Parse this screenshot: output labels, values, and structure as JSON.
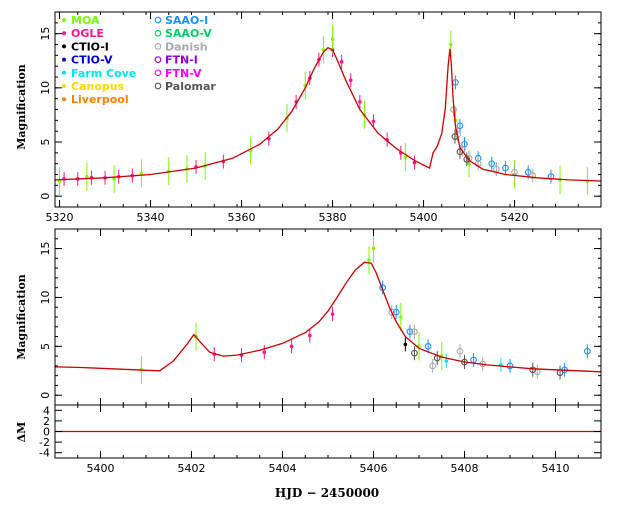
{
  "chart_data": [
    {
      "type": "scatter",
      "panel": "top",
      "ylabel": "Magnification",
      "xlim": [
        5319,
        5439
      ],
      "ylim": [
        -1,
        17
      ],
      "xticks": [
        5320,
        5340,
        5360,
        5380,
        5400,
        5420
      ],
      "yticks": [
        0,
        5,
        10,
        15
      ],
      "legend": {
        "placement": "top-left",
        "entries": [
          {
            "name": "MOA",
            "color": "#7cfc00",
            "marker": "dot"
          },
          {
            "name": "OGLE",
            "color": "#ff1493",
            "marker": "dot"
          },
          {
            "name": "CTIO-I",
            "color": "#000000",
            "marker": "dot"
          },
          {
            "name": "CTIO-V",
            "color": "#0000cd",
            "marker": "dot"
          },
          {
            "name": "Farm Cove",
            "color": "#00e5ee",
            "marker": "dot"
          },
          {
            "name": "Canopus",
            "color": "#ffd700",
            "marker": "dot"
          },
          {
            "name": "Liverpool",
            "color": "#ff7f00",
            "marker": "dot"
          },
          {
            "name": "SAAO-I",
            "color": "#1e90ff",
            "marker": "circle"
          },
          {
            "name": "SAAO-V",
            "color": "#00cd66",
            "marker": "circle"
          },
          {
            "name": "Danish",
            "color": "#a9a9a9",
            "marker": "circle"
          },
          {
            "name": "FTN-I",
            "color": "#9400d3",
            "marker": "circle"
          },
          {
            "name": "FTN-V",
            "color": "#ff00ff",
            "marker": "circle"
          },
          {
            "name": "Palomar",
            "color": "#555555",
            "marker": "circle"
          }
        ]
      },
      "model_curve": {
        "color": "#cc0000",
        "x": [
          5319,
          5330,
          5340,
          5350,
          5358,
          5364,
          5368,
          5371,
          5374,
          5376,
          5378,
          5379,
          5380,
          5381,
          5383,
          5386,
          5390,
          5394,
          5398,
          5401.3,
          5402.1,
          5403,
          5404,
          5404.8,
          5405.4,
          5405.8,
          5406.1,
          5406.5,
          5407,
          5408,
          5410,
          5413,
          5418,
          5425,
          5432,
          5439
        ],
        "y": [
          1.5,
          1.7,
          2.0,
          2.6,
          3.5,
          4.8,
          6.2,
          7.8,
          10.0,
          11.8,
          13.3,
          13.7,
          13.5,
          12.6,
          10.6,
          8.0,
          5.8,
          4.4,
          3.3,
          2.6,
          4.0,
          4.6,
          5.8,
          8.2,
          12.0,
          13.6,
          12.2,
          9.0,
          6.5,
          4.5,
          3.3,
          2.5,
          2.0,
          1.7,
          1.5,
          1.4
        ]
      },
      "data_points": [
        {
          "dataset": "OGLE",
          "x": [
            5321,
            5324,
            5327,
            5330,
            5333,
            5336,
            5350,
            5356,
            5366,
            5372,
            5375,
            5377,
            5380,
            5382,
            5384,
            5386,
            5389,
            5392,
            5395,
            5398
          ],
          "y": [
            1.6,
            1.6,
            1.7,
            1.7,
            1.8,
            1.9,
            2.7,
            3.2,
            5.3,
            8.7,
            10.9,
            12.6,
            13.5,
            12.4,
            10.7,
            8.7,
            6.9,
            5.2,
            4.0,
            3.1
          ]
        },
        {
          "dataset": "MOA",
          "x": [
            5320,
            5326,
            5332,
            5338,
            5344,
            5348,
            5352,
            5362,
            5370,
            5374,
            5378,
            5380,
            5387,
            5396,
            5406,
            5407,
            5410,
            5420,
            5430,
            5436
          ],
          "y": [
            1.4,
            1.8,
            1.6,
            2.1,
            2.3,
            2.5,
            2.8,
            4.2,
            7.2,
            10.2,
            13.5,
            14.5,
            7.5,
            3.6,
            14.0,
            7.0,
            3.0,
            2.0,
            1.5,
            1.4
          ]
        },
        {
          "dataset": "SAAO-I",
          "x": [
            5407,
            5408,
            5409,
            5412,
            5415,
            5418,
            5423,
            5428
          ],
          "y": [
            10.5,
            6.5,
            4.8,
            3.5,
            3.0,
            2.6,
            2.2,
            1.8
          ]
        },
        {
          "dataset": "Danish",
          "x": [
            5406.6,
            5407.5,
            5408.5,
            5410,
            5412,
            5416,
            5420,
            5424
          ],
          "y": [
            8.0,
            5.7,
            4.3,
            3.5,
            3.0,
            2.5,
            2.2,
            1.9
          ]
        },
        {
          "dataset": "Palomar",
          "x": [
            5406.9,
            5408,
            5409.5
          ],
          "y": [
            5.5,
            4.1,
            3.4
          ]
        }
      ]
    },
    {
      "type": "scatter",
      "panel": "middle",
      "ylabel": "Magnification",
      "xlim": [
        5399,
        5411
      ],
      "ylim": [
        -1,
        17
      ],
      "xticks": [
        5400,
        5402,
        5404,
        5406,
        5408,
        5410
      ],
      "yticks": [
        0,
        5,
        10,
        15
      ],
      "model_curve": {
        "color": "#cc0000",
        "x": [
          5399,
          5399.5,
          5400,
          5400.5,
          5401,
          5401.3,
          5401.6,
          5401.9,
          5402.05,
          5402.2,
          5402.4,
          5402.7,
          5403,
          5403.5,
          5404,
          5404.5,
          5404.8,
          5405,
          5405.2,
          5405.4,
          5405.6,
          5405.8,
          5405.95,
          5406.05,
          5406.2,
          5406.35,
          5406.5,
          5406.7,
          5407,
          5407.5,
          5408,
          5408.5,
          5409,
          5409.5,
          5410,
          5410.5,
          5411
        ],
        "y": [
          2.9,
          2.85,
          2.75,
          2.65,
          2.55,
          2.5,
          3.5,
          5.2,
          6.2,
          5.4,
          4.4,
          4.0,
          4.1,
          4.6,
          5.3,
          6.4,
          7.5,
          8.6,
          10.0,
          11.5,
          12.8,
          13.6,
          13.5,
          12.6,
          10.8,
          9.0,
          7.5,
          6.0,
          4.8,
          3.9,
          3.4,
          3.1,
          2.9,
          2.7,
          2.6,
          2.5,
          2.4
        ]
      },
      "data_points": [
        {
          "dataset": "OGLE",
          "x": [
            5402.5,
            5403.1,
            5403.6,
            5404.2,
            5404.6,
            5405.1
          ],
          "y": [
            4.2,
            4.1,
            4.4,
            5.0,
            6.1,
            8.3
          ]
        },
        {
          "dataset": "MOA",
          "x": [
            5400.9,
            5402.1,
            5405.9,
            5406.0,
            5406.6,
            5407.0,
            5407.5
          ],
          "y": [
            2.6,
            6.0,
            13.8,
            15.0,
            8.0,
            5.0,
            4.0
          ]
        },
        {
          "dataset": "SAAO-I",
          "x": [
            5406.2,
            5406.5,
            5406.8,
            5407.2,
            5408.2,
            5409.0,
            5410.2,
            5410.7
          ],
          "y": [
            11.0,
            8.5,
            6.5,
            5.0,
            3.6,
            3.0,
            2.6,
            4.5
          ]
        },
        {
          "dataset": "Danish",
          "x": [
            5406.4,
            5406.9,
            5407.3,
            5407.9,
            5408.4,
            5409.6
          ],
          "y": [
            8.5,
            6.5,
            3.0,
            4.5,
            3.2,
            2.4
          ]
        },
        {
          "dataset": "Palomar",
          "x": [
            5406.9,
            5407.4,
            5408.0,
            5409.5,
            5410.1
          ],
          "y": [
            4.3,
            3.8,
            3.4,
            2.6,
            2.3
          ]
        },
        {
          "dataset": "Farm Cove",
          "x": [
            5407.6,
            5408.8
          ],
          "y": [
            3.5,
            3.1
          ]
        },
        {
          "dataset": "CTIO-I",
          "x": [
            5406.7
          ],
          "y": [
            5.2
          ]
        }
      ]
    },
    {
      "type": "scatter",
      "panel": "residuals",
      "ylabel": "ΔM",
      "xlabel": "HJD − 2450000",
      "xlim": [
        5399,
        5411
      ],
      "ylim": [
        -5,
        5
      ],
      "yticks": [
        -4,
        -2,
        0,
        2,
        4
      ],
      "xticks": [
        5400,
        5402,
        5404,
        5406,
        5408,
        5410
      ],
      "zero_line_color": "#cc0000"
    }
  ]
}
